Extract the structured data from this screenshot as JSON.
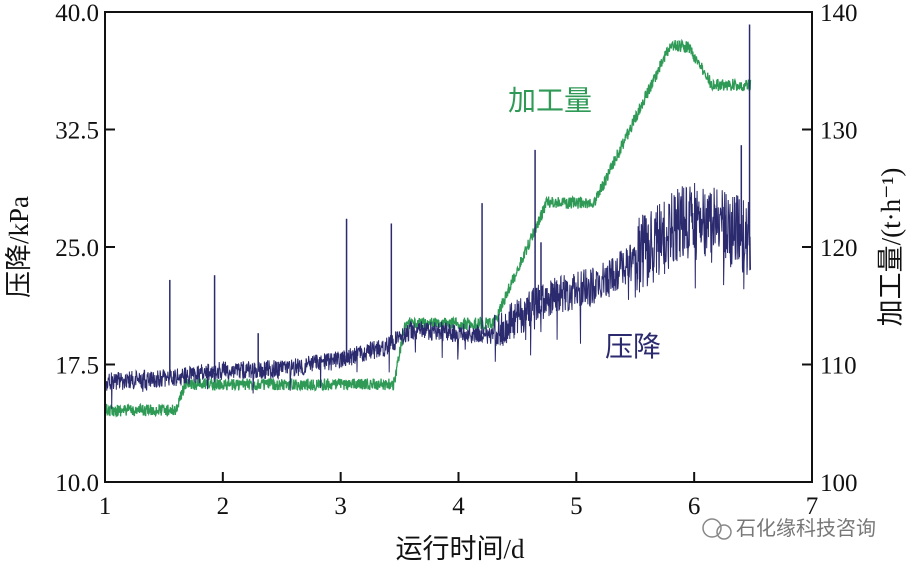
{
  "chart_data": {
    "type": "line",
    "xlabel": "运行时间/d",
    "ylabel": "压降/kPa",
    "y2label": "加工量/(t·h⁻¹)",
    "xlim": [
      1,
      7
    ],
    "ylim": [
      10.0,
      40.0
    ],
    "y2lim": [
      100,
      140
    ],
    "xticks": [
      "1",
      "2",
      "3",
      "4",
      "5",
      "6",
      "7"
    ],
    "yticks": [
      "10.0",
      "17.5",
      "25.0",
      "32.5",
      "40.0"
    ],
    "y2ticks": [
      "100",
      "110",
      "120",
      "130",
      "140"
    ],
    "grid": false,
    "series": [
      {
        "name": "压降",
        "axis": "left",
        "color": "#2b2a6e",
        "x": [
          1.0,
          1.5,
          2.0,
          2.5,
          3.0,
          3.4,
          3.6,
          4.3,
          4.7,
          5.2,
          5.6,
          5.9,
          6.2,
          6.48
        ],
        "y": [
          16.4,
          16.6,
          17.1,
          17.2,
          17.8,
          18.7,
          19.7,
          19.4,
          21.6,
          22.6,
          24.8,
          26.7,
          26.4,
          25.4
        ],
        "spikes": {
          "x": [
            1.55,
            1.93,
            2.3,
            3.05,
            3.43,
            4.2,
            4.65,
            4.7,
            6.4,
            6.47
          ],
          "y": [
            22.9,
            23.2,
            19.5,
            26.8,
            26.5,
            27.8,
            31.2,
            25.3,
            31.5,
            39.2
          ]
        }
      },
      {
        "name": "加工量",
        "axis": "right",
        "color": "#2e9a55",
        "x": [
          1.0,
          1.6,
          1.68,
          3.45,
          3.55,
          4.3,
          4.75,
          5.15,
          5.8,
          5.95,
          6.15,
          6.48
        ],
        "y": [
          106.1,
          106.1,
          108.3,
          108.3,
          113.5,
          113.5,
          123.8,
          123.7,
          137.2,
          137.0,
          133.8,
          133.8
        ]
      }
    ]
  },
  "watermark": "石化缘科技咨询"
}
